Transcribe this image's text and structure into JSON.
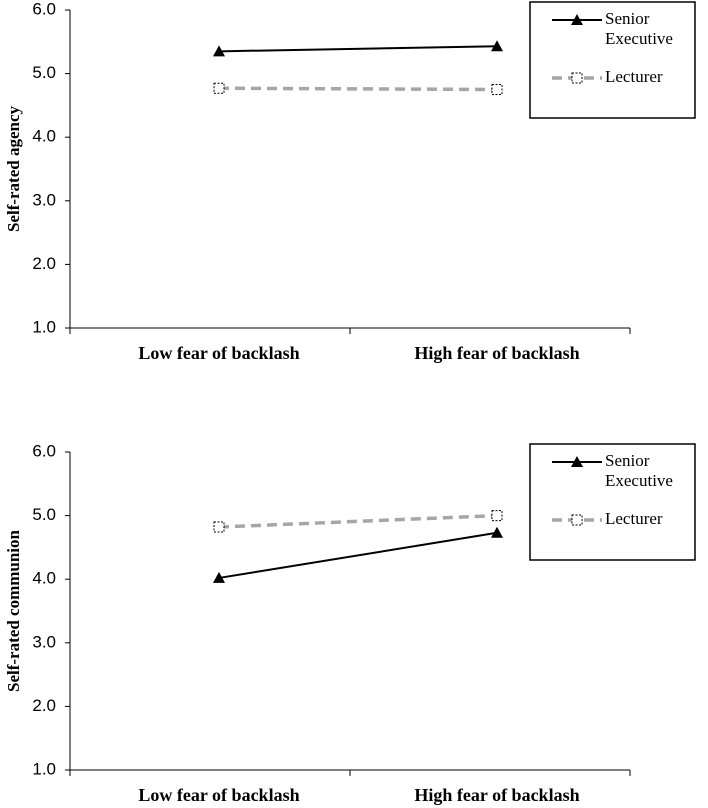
{
  "chart_data": [
    {
      "type": "line",
      "y_label": "Self-rated agency",
      "categories": [
        "Low fear of backlash",
        "High fear of backlash"
      ],
      "series": [
        {
          "name": "Senior Executive",
          "color": "#000000",
          "marker": "triangle",
          "linestyle": "solid",
          "values": [
            5.35,
            5.43
          ]
        },
        {
          "name": "Lecturer",
          "color": "#a6a6a6",
          "marker": "square",
          "linestyle": "dashed",
          "values": [
            4.77,
            4.75
          ]
        }
      ],
      "ylim": [
        1,
        6
      ],
      "yticks": [
        {
          "value": 1,
          "label": "1.0"
        },
        {
          "value": 2,
          "label": "2.0"
        },
        {
          "value": 3,
          "label": "3.0"
        },
        {
          "value": 4,
          "label": "4.0"
        },
        {
          "value": 5,
          "label": "5.0"
        },
        {
          "value": 6,
          "label": "6.0"
        }
      ],
      "legend": "upper right"
    },
    {
      "type": "line",
      "y_label": "Self-rated communion",
      "categories": [
        "Low fear of backlash",
        "High fear of backlash"
      ],
      "series": [
        {
          "name": "Senior Executive",
          "color": "#000000",
          "marker": "triangle",
          "linestyle": "solid",
          "values": [
            4.02,
            4.73
          ]
        },
        {
          "name": "Lecturer",
          "color": "#a6a6a6",
          "marker": "square",
          "linestyle": "dashed",
          "values": [
            4.82,
            5.0
          ]
        }
      ],
      "ylim": [
        1,
        6
      ],
      "yticks": [
        {
          "value": 1,
          "label": "1.0"
        },
        {
          "value": 2,
          "label": "2.0"
        },
        {
          "value": 3,
          "label": "3.0"
        },
        {
          "value": 4,
          "label": "4.0"
        },
        {
          "value": 5,
          "label": "5.0"
        },
        {
          "value": 6,
          "label": "6.0"
        }
      ],
      "legend": "upper right"
    }
  ]
}
